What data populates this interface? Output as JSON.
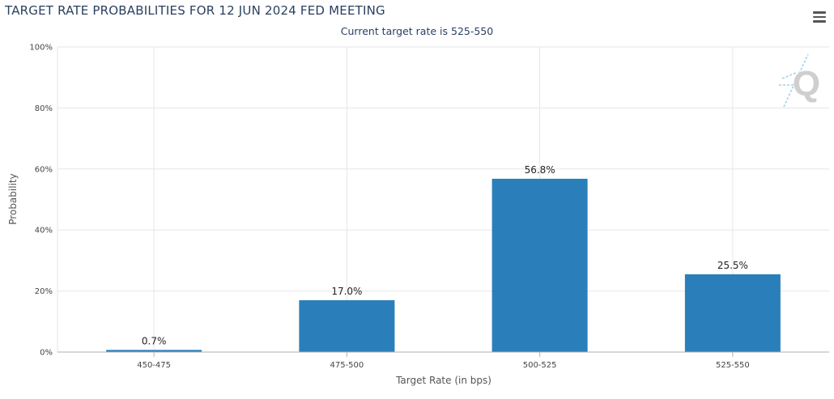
{
  "header": {
    "title": "TARGET RATE PROBABILITIES FOR 12 JUN 2024 FED MEETING",
    "subtitle": "Current target rate is 525-550"
  },
  "logo": {
    "letter": "Q"
  },
  "icons": {
    "menu": "hamburger-menu-icon"
  },
  "colors": {
    "bar": "#2a7fba",
    "grid": "#e6e6e6",
    "axis": "#b0b0b0"
  },
  "chart_data": {
    "type": "bar",
    "title": "TARGET RATE PROBABILITIES FOR 12 JUN 2024 FED MEETING",
    "subtitle": "Current target rate is 525-550",
    "categories": [
      "450-475",
      "475-500",
      "500-525",
      "525-550"
    ],
    "values": [
      0.7,
      17.0,
      56.8,
      25.5
    ],
    "value_labels": [
      "0.7%",
      "17.0%",
      "56.8%",
      "25.5%"
    ],
    "xlabel": "Target Rate (in bps)",
    "ylabel": "Probability",
    "ylim": [
      0,
      100
    ],
    "yticks": [
      "0%",
      "20%",
      "40%",
      "60%",
      "80%",
      "100%"
    ],
    "ytick_values": [
      0,
      20,
      40,
      60,
      80,
      100
    ],
    "grid": true,
    "legend": "none"
  }
}
